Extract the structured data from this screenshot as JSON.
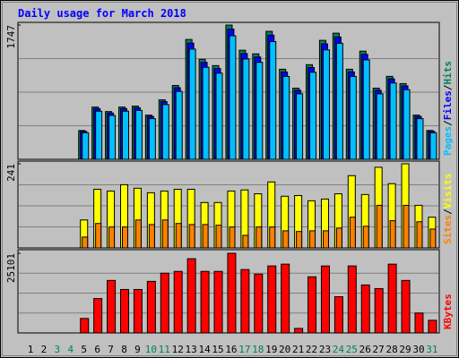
{
  "chart_data": {
    "type": "bar",
    "title": "Daily usage for March 2018",
    "categories": [
      "1",
      "2",
      "3",
      "4",
      "5",
      "6",
      "7",
      "8",
      "9",
      "10",
      "11",
      "12",
      "13",
      "14",
      "15",
      "16",
      "17",
      "18",
      "19",
      "20",
      "21",
      "22",
      "23",
      "24",
      "25",
      "26",
      "27",
      "28",
      "29",
      "30",
      "31"
    ],
    "category_colors": [
      "#000000",
      "#000000",
      "#00805c",
      "#00805c",
      "#000000",
      "#000000",
      "#000000",
      "#000000",
      "#000000",
      "#00805c",
      "#00805c",
      "#000000",
      "#000000",
      "#000000",
      "#000000",
      "#000000",
      "#00805c",
      "#00805c",
      "#000000",
      "#000000",
      "#000000",
      "#000000",
      "#000000",
      "#00805c",
      "#00805c",
      "#000000",
      "#000000",
      "#000000",
      "#000000",
      "#000000",
      "#00805c"
    ],
    "legend_separator": "/",
    "panels": [
      {
        "ylim": [
          0,
          1747
        ],
        "yticks": [
          1747
        ],
        "series": [
          {
            "name": "Hits",
            "color": "#00805c",
            "values": [
              0,
              0,
              0,
              0,
              375,
              680,
              621,
              680,
              692,
              575,
              774,
              961,
              1559,
              1301,
              1219,
              1747,
              1419,
              1372,
              1665,
              1172,
              926,
              1231,
              1548,
              1641,
              1172,
              1407,
              926,
              1079,
              985,
              575,
              375
            ]
          },
          {
            "name": "Files",
            "color": "#0000ff",
            "values": [
              0,
              0,
              0,
              0,
              364,
              660,
              602,
              660,
              671,
              558,
              751,
              932,
              1512,
              1262,
              1182,
              1695,
              1376,
              1331,
              1615,
              1137,
              898,
              1194,
              1502,
              1592,
              1137,
              1365,
              898,
              1047,
              955,
              558,
              364
            ]
          },
          {
            "name": "Pages",
            "color": "#00c0ff",
            "values": [
              0,
              0,
              0,
              0,
              345,
              626,
              571,
              626,
              637,
              529,
              712,
              884,
              1434,
              1197,
              1121,
              1607,
              1305,
              1262,
              1532,
              1078,
              852,
              1133,
              1424,
              1510,
              1078,
              1294,
              852,
              993,
              906,
              529,
              345
            ]
          }
        ]
      },
      {
        "ylim": [
          0,
          241
        ],
        "yticks": [
          241
        ],
        "series": [
          {
            "name": "Visits",
            "color": "#ffff00",
            "values": [
              0,
              0,
              0,
              0,
              80,
              168,
              163,
              181,
              171,
              158,
              163,
              168,
              168,
              130,
              130,
              163,
              166,
              155,
              189,
              148,
              150,
              135,
              140,
              155,
              207,
              153,
              231,
              184,
              241,
              122,
              88
            ]
          },
          {
            "name": "Sites",
            "color": "#ff8000",
            "values": [
              0,
              0,
              0,
              0,
              31,
              70,
              60,
              60,
              80,
              67,
              80,
              70,
              67,
              67,
              65,
              60,
              36,
              60,
              60,
              49,
              47,
              49,
              49,
              57,
              88,
              62,
              122,
              78,
              122,
              75,
              54
            ]
          }
        ]
      },
      {
        "ylim": [
          0,
          25101
        ],
        "yticks": [
          25101
        ],
        "series": [
          {
            "name": "KBytes",
            "color": "#ff0000",
            "values": [
              0,
              0,
              0,
              0,
              4564,
              10839,
              16544,
              13691,
              13691,
              16258,
              18826,
              19396,
              23390,
              19396,
              19396,
              25101,
              19967,
              18541,
              21108,
              21678,
              1426,
              17685,
              21108,
              11409,
              21108,
              15118,
              13977,
              21678,
              16544,
              6275,
              3993
            ]
          }
        ]
      }
    ]
  }
}
